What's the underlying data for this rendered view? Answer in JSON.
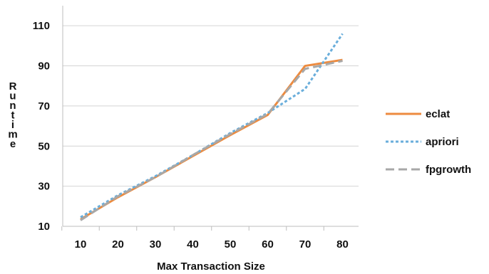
{
  "chart_data": {
    "type": "line",
    "xlabel": "Max Transaction Size",
    "ylabel": "Runtime",
    "categories": [
      "10",
      "20",
      "30",
      "40",
      "50",
      "60",
      "70",
      "80"
    ],
    "x": [
      10,
      20,
      30,
      40,
      50,
      60,
      70,
      80
    ],
    "yticks": [
      "10",
      "30",
      "50",
      "70",
      "90",
      "110"
    ],
    "ylim": [
      10,
      120
    ],
    "grid": "horizontal",
    "legend_position": "right",
    "series": [
      {
        "name": "eclat",
        "color": "#ED8B3F",
        "dash": "solid",
        "values": [
          13.5,
          24.5,
          34.5,
          45,
          55.5,
          65.5,
          90,
          93
        ]
      },
      {
        "name": "apriori",
        "color": "#6AAEDB",
        "dash": "dotted",
        "values": [
          14.5,
          25.5,
          35,
          45.5,
          56.5,
          66.5,
          78.5,
          106
        ]
      },
      {
        "name": "fpgrowth",
        "color": "#A8A8A8",
        "dash": "dashed",
        "values": [
          13,
          25,
          34.5,
          45.5,
          56,
          66,
          88.5,
          92.5
        ]
      }
    ]
  }
}
